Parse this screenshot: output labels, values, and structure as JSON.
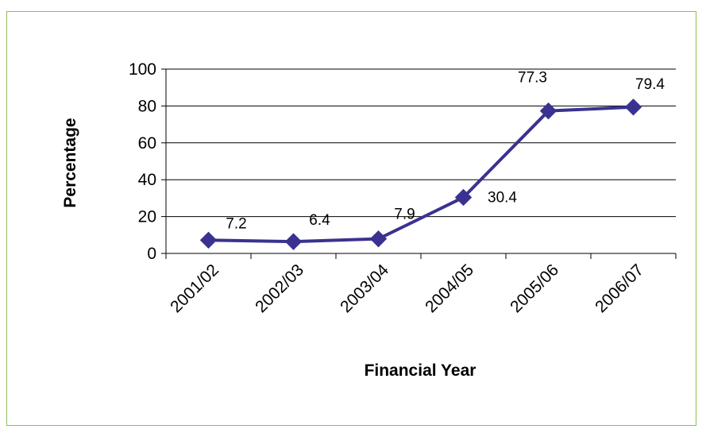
{
  "chart_data": {
    "type": "line",
    "categories": [
      "2001/02",
      "2002/03",
      "2003/04",
      "2004/05",
      "2005/06",
      "2006/07"
    ],
    "series": [
      {
        "values": [
          7.2,
          6.4,
          7.9,
          30.4,
          77.3,
          79.4
        ]
      }
    ],
    "data_labels": [
      "7.2",
      "6.4",
      "7.9",
      "30.4",
      "77.3",
      "79.4"
    ],
    "xlabel": "Financial Year",
    "ylabel": "Percentage",
    "ylim": [
      0,
      100
    ],
    "yticks": [
      0,
      20,
      40,
      60,
      80,
      100
    ],
    "grid": true,
    "legend": "none",
    "colors": {
      "line": "#3a3290",
      "marker": "#3a3290",
      "frame": "#8dbf56",
      "grid": "#000000"
    }
  }
}
